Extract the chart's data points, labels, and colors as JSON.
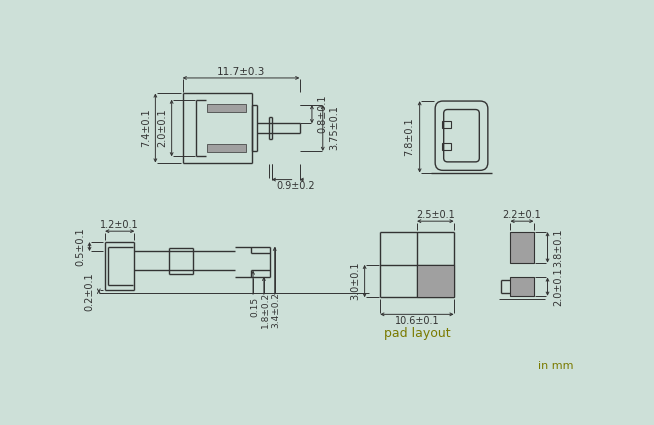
{
  "bg_color": "#cde0d8",
  "line_color": "#333333",
  "dim_color": "#333333",
  "gray_fill": "#a0a0a0",
  "olive_text": "#7a7a00",
  "annotations": {
    "top_view_width": "11.7±0.3",
    "top_view_h1": "0.8±0.1",
    "top_view_h2": "3.75±0.1",
    "top_view_left_h": "7.4±0.1",
    "top_view_inner_h": "2.0±0.1",
    "top_view_pin_w": "0.9±0.2",
    "side_view_h": "7.8±0.1",
    "bottom_left_w": "1.2±0.1",
    "bottom_left_h1": "0.5±0.1",
    "bottom_left_h2": "0.2±0.1",
    "bottom_dim1": "0.15",
    "bottom_dim2": "1.8±0.2",
    "bottom_dim3": "3.4±0.2",
    "pad_w": "2.5±0.1",
    "pad_h": "3.0±0.1",
    "pad_total_w": "10.6±0.1",
    "pad_layout_label": "pad layout",
    "pad2_w": "2.2±0.1",
    "pad2_h1": "3.8±0.1",
    "pad2_h2": "2.0±0.1",
    "unit_label": "in mm"
  }
}
